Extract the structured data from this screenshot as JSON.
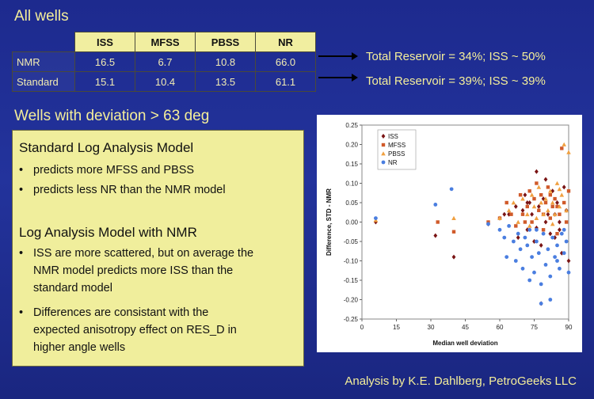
{
  "titles": {
    "all_wells": "All wells",
    "deviation": "Wells with deviation > 63 deg"
  },
  "table": {
    "headers": [
      "ISS",
      "MFSS",
      "PBSS",
      "NR"
    ],
    "rows": [
      {
        "label": "NMR",
        "values": [
          "16.5",
          "6.7",
          "10.8",
          "66.0"
        ]
      },
      {
        "label": "Standard",
        "values": [
          "15.1",
          "10.4",
          "13.5",
          "61.1"
        ]
      }
    ]
  },
  "results": [
    "Total Reservoir = 34%; ISS ~ 50%",
    "Total Reservoir = 39%; ISS ~ 39%"
  ],
  "text_box": {
    "heading1": "Standard Log Analysis Model",
    "bullets1": [
      "predicts more MFSS and PBSS",
      "predicts less NR than the NMR model"
    ],
    "heading2": "Log Analysis Model with NMR",
    "bullet2a_l1": "ISS are more scattered, but on average the",
    "bullet2a_l2": "NMR model predicts more ISS than the",
    "bullet2a_l3": "standard model",
    "bullet2b_l1": "Differences are consistant with the",
    "bullet2b_l2": "expected anisotropy effect on RES_D in",
    "bullet2b_l3": "higher angle wells"
  },
  "credit": "Analysis by K.E. Dahlberg, PetroGeeks LLC",
  "chart_data": {
    "type": "scatter",
    "xlabel": "Median well deviation",
    "ylabel": "Difference, STD - NMR",
    "xlim": [
      0,
      90
    ],
    "ylim": [
      -0.25,
      0.25
    ],
    "xticks": [
      0,
      15,
      30,
      45,
      60,
      75,
      90
    ],
    "yticks": [
      0.25,
      0.2,
      0.15,
      0.1,
      0.05,
      0.0,
      -0.05,
      -0.1,
      -0.15,
      -0.2,
      -0.25
    ],
    "ytick_labels": [
      "0.25",
      "0.20",
      "0.15",
      "0.10",
      "0.05",
      "0.00",
      "-0.05",
      "-0.10",
      "-0.15",
      "-0.20",
      "-0.25"
    ],
    "legend_position": "top-left",
    "grid": false,
    "series": [
      {
        "name": "ISS",
        "marker": "diamond",
        "color": "#7a1414",
        "points": [
          [
            6,
            0.0
          ],
          [
            32,
            -0.035
          ],
          [
            40,
            -0.09
          ],
          [
            55,
            -0.005
          ],
          [
            60,
            0.01
          ],
          [
            64,
            0.02
          ],
          [
            67,
            0.04
          ],
          [
            68,
            -0.04
          ],
          [
            70,
            0.03
          ],
          [
            71,
            0.07
          ],
          [
            72,
            -0.02
          ],
          [
            73,
            0.05
          ],
          [
            74,
            0.02
          ],
          [
            75,
            -0.05
          ],
          [
            76,
            0.13
          ],
          [
            77,
            0.04
          ],
          [
            78,
            -0.06
          ],
          [
            79,
            0.06
          ],
          [
            80,
            0.11
          ],
          [
            81,
            0.02
          ],
          [
            82,
            -0.03
          ],
          [
            83,
            0.08
          ],
          [
            84,
            -0.04
          ],
          [
            85,
            0.05
          ],
          [
            86,
            0.0
          ],
          [
            87,
            -0.08
          ],
          [
            88,
            0.09
          ],
          [
            89,
            0.03
          ],
          [
            90,
            -0.1
          ],
          [
            78,
            -0.21
          ],
          [
            80,
            0.0
          ],
          [
            84,
            0.02
          ],
          [
            72,
            0.05
          ],
          [
            86,
            -0.02
          ],
          [
            76,
            -0.015
          ],
          [
            62,
            0.02
          ]
        ]
      },
      {
        "name": "MFSS",
        "marker": "square",
        "color": "#d05a2a",
        "points": [
          [
            33,
            0.0
          ],
          [
            40,
            -0.025
          ],
          [
            55,
            0.0
          ],
          [
            60,
            0.01
          ],
          [
            63,
            0.05
          ],
          [
            65,
            0.02
          ],
          [
            67,
            -0.01
          ],
          [
            69,
            0.07
          ],
          [
            70,
            0.02
          ],
          [
            72,
            0.04
          ],
          [
            73,
            0.08
          ],
          [
            74,
            0.0
          ],
          [
            75,
            0.06
          ],
          [
            76,
            0.1
          ],
          [
            77,
            0.03
          ],
          [
            78,
            0.07
          ],
          [
            79,
            -0.02
          ],
          [
            80,
            0.05
          ],
          [
            81,
            0.09
          ],
          [
            82,
            0.01
          ],
          [
            83,
            0.04
          ],
          [
            84,
            0.06
          ],
          [
            85,
            -0.03
          ],
          [
            86,
            0.02
          ],
          [
            87,
            0.19
          ],
          [
            88,
            0.05
          ],
          [
            89,
            0.0
          ],
          [
            90,
            0.08
          ],
          [
            71,
            0.0
          ],
          [
            79,
            0.02
          ],
          [
            82,
            0.07
          ],
          [
            85,
            0.04
          ]
        ]
      },
      {
        "name": "PBSS",
        "marker": "triangle",
        "color": "#f0a040",
        "points": [
          [
            6,
            0.005
          ],
          [
            40,
            0.01
          ],
          [
            60,
            0.01
          ],
          [
            64,
            0.03
          ],
          [
            66,
            0.05
          ],
          [
            68,
            0.0
          ],
          [
            70,
            0.06
          ],
          [
            72,
            0.02
          ],
          [
            74,
            0.07
          ],
          [
            75,
            0.04
          ],
          [
            76,
            0.01
          ],
          [
            77,
            0.09
          ],
          [
            78,
            0.05
          ],
          [
            79,
            0.02
          ],
          [
            80,
            0.06
          ],
          [
            81,
            0.03
          ],
          [
            82,
            0.08
          ],
          [
            83,
            0.05
          ],
          [
            84,
            0.02
          ],
          [
            85,
            0.1
          ],
          [
            86,
            0.04
          ],
          [
            87,
            0.07
          ],
          [
            88,
            0.2
          ],
          [
            89,
            0.03
          ],
          [
            90,
            0.18
          ],
          [
            73,
            -0.01
          ],
          [
            83,
            -0.005
          ],
          [
            86,
            0.085
          ]
        ]
      },
      {
        "name": "NR",
        "marker": "circle",
        "color": "#4a7ee0",
        "points": [
          [
            6,
            0.01
          ],
          [
            32,
            0.045
          ],
          [
            39,
            0.085
          ],
          [
            55,
            -0.005
          ],
          [
            60,
            -0.02
          ],
          [
            62,
            -0.04
          ],
          [
            63,
            -0.09
          ],
          [
            64,
            -0.01
          ],
          [
            66,
            -0.05
          ],
          [
            67,
            -0.1
          ],
          [
            68,
            -0.03
          ],
          [
            69,
            -0.07
          ],
          [
            70,
            -0.12
          ],
          [
            71,
            -0.04
          ],
          [
            72,
            -0.06
          ],
          [
            73,
            -0.02
          ],
          [
            74,
            -0.09
          ],
          [
            75,
            -0.13
          ],
          [
            76,
            -0.05
          ],
          [
            77,
            -0.08
          ],
          [
            78,
            -0.16
          ],
          [
            79,
            -0.03
          ],
          [
            80,
            -0.11
          ],
          [
            81,
            -0.07
          ],
          [
            82,
            -0.14
          ],
          [
            83,
            -0.04
          ],
          [
            84,
            -0.09
          ],
          [
            85,
            -0.06
          ],
          [
            86,
            -0.12
          ],
          [
            87,
            -0.03
          ],
          [
            88,
            -0.08
          ],
          [
            89,
            -0.05
          ],
          [
            90,
            -0.13
          ],
          [
            78,
            -0.21
          ],
          [
            73,
            -0.15
          ],
          [
            82,
            -0.2
          ],
          [
            85,
            -0.1
          ],
          [
            76,
            -0.02
          ],
          [
            88,
            -0.02
          ]
        ]
      }
    ]
  }
}
